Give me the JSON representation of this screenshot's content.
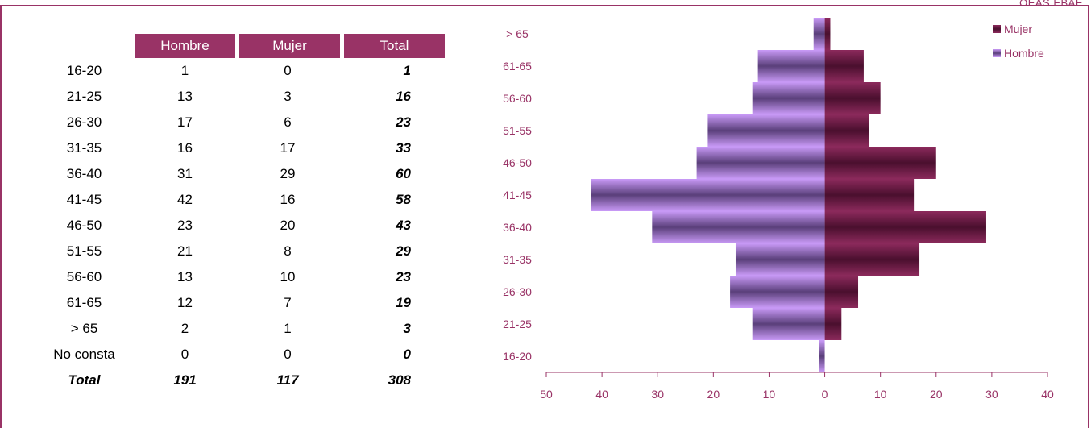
{
  "corner_text": "OEAS EBAE",
  "table": {
    "headers": [
      "",
      "Hombre",
      "Mujer",
      "Total"
    ],
    "rows": [
      {
        "age": "16-20",
        "hombre": "1",
        "mujer": "0",
        "total": "1"
      },
      {
        "age": "21-25",
        "hombre": "13",
        "mujer": "3",
        "total": "16"
      },
      {
        "age": "26-30",
        "hombre": "17",
        "mujer": "6",
        "total": "23"
      },
      {
        "age": "31-35",
        "hombre": "16",
        "mujer": "17",
        "total": "33"
      },
      {
        "age": "36-40",
        "hombre": "31",
        "mujer": "29",
        "total": "60"
      },
      {
        "age": "41-45",
        "hombre": "42",
        "mujer": "16",
        "total": "58"
      },
      {
        "age": "46-50",
        "hombre": "23",
        "mujer": "20",
        "total": "43"
      },
      {
        "age": "51-55",
        "hombre": "21",
        "mujer": "8",
        "total": "29"
      },
      {
        "age": "56-60",
        "hombre": "13",
        "mujer": "10",
        "total": "23"
      },
      {
        "age": "61-65",
        "hombre": "12",
        "mujer": "7",
        "total": "19"
      },
      {
        "age": "> 65",
        "hombre": "2",
        "mujer": "1",
        "total": "3"
      },
      {
        "age": "No consta",
        "hombre": "0",
        "mujer": "0",
        "total": "0"
      }
    ],
    "total_row": {
      "label": "Total",
      "hombre": "191",
      "mujer": "117",
      "total": "308"
    }
  },
  "chart_data": {
    "type": "bar",
    "orientation": "horizontal",
    "categories": [
      "16-20",
      "21-25",
      "26-30",
      "31-35",
      "36-40",
      "41-45",
      "46-50",
      "51-55",
      "56-60",
      "61-65",
      "> 65"
    ],
    "series": [
      {
        "name": "Mujer",
        "values": [
          0,
          3,
          6,
          17,
          29,
          16,
          20,
          8,
          10,
          7,
          1
        ],
        "color": "#7a1f4e"
      },
      {
        "name": "Hombre",
        "values": [
          -1,
          -13,
          -17,
          -16,
          -31,
          -42,
          -23,
          -21,
          -13,
          -12,
          -2
        ],
        "color": "#c58cf5"
      }
    ],
    "xlim": [
      -50,
      40
    ],
    "x_tick_labels": [
      "50",
      "40",
      "30",
      "20",
      "10",
      "0",
      "10",
      "20",
      "30",
      "40"
    ],
    "legend_position": "top-right",
    "colors": {
      "axis_text": "#993366",
      "axis_line": "#993366"
    }
  }
}
